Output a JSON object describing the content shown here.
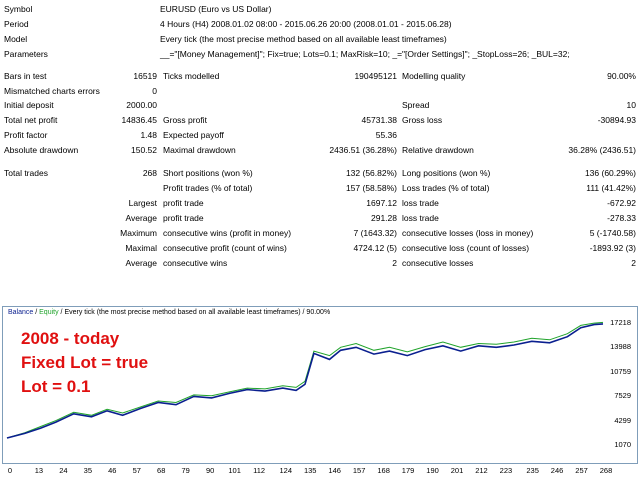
{
  "report": {
    "symbol": {
      "label": "Symbol",
      "value": "EURUSD (Euro vs US Dollar)"
    },
    "period": {
      "label": "Period",
      "value": "4 Hours (H4) 2008.01.02 08:00 - 2015.06.26 20:00 (2008.01.01 - 2015.06.28)"
    },
    "model": {
      "label": "Model",
      "value": "Every tick (the most precise method based on all available least timeframes)"
    },
    "parameters": {
      "label": "Parameters",
      "value": "__=\"[Money Management]\"; Fix=true; Lots=0.1; MaxRisk=10; _=\"[Order Settings]\"; _StopLoss=26; _BUL=32;"
    },
    "bars_in_test": {
      "label": "Bars in test",
      "value": "16519"
    },
    "ticks_modelled": {
      "label": "Ticks modelled",
      "value": "190495121"
    },
    "modelling_quality": {
      "label": "Modelling quality",
      "value": "90.00%"
    },
    "mismatched": {
      "label": "Mismatched charts errors",
      "value": "0"
    },
    "initial_deposit": {
      "label": "Initial deposit",
      "value": "2000.00"
    },
    "spread": {
      "label": "Spread",
      "value": "10"
    },
    "total_net_profit": {
      "label": "Total net profit",
      "value": "14836.45"
    },
    "gross_profit": {
      "label": "Gross profit",
      "value": "45731.38"
    },
    "gross_loss": {
      "label": "Gross loss",
      "value": "-30894.93"
    },
    "profit_factor": {
      "label": "Profit factor",
      "value": "1.48"
    },
    "expected_payoff": {
      "label": "Expected payoff",
      "value": "55.36"
    },
    "absolute_drawdown": {
      "label": "Absolute drawdown",
      "value": "150.52"
    },
    "maximal_drawdown": {
      "label": "Maximal drawdown",
      "value": "2436.51 (36.28%)"
    },
    "relative_drawdown": {
      "label": "Relative drawdown",
      "value": "36.28% (2436.51)"
    },
    "total_trades": {
      "label": "Total trades",
      "value": "268"
    },
    "short_positions": {
      "label": "Short positions (won %)",
      "value": "132 (56.82%)"
    },
    "long_positions": {
      "label": "Long positions (won %)",
      "value": "136 (60.29%)"
    },
    "profit_trades": {
      "label": "Profit trades (% of total)",
      "value": "157 (58.58%)"
    },
    "loss_trades": {
      "label": "Loss trades (% of total)",
      "value": "111 (41.42%)"
    },
    "largest": {
      "label": "Largest",
      "profit_label": "profit trade",
      "profit": "1697.12",
      "loss_label": "loss trade",
      "loss": "-672.92"
    },
    "average": {
      "label": "Average",
      "profit_label": "profit trade",
      "profit": "291.28",
      "loss_label": "loss trade",
      "loss": "-278.33"
    },
    "maximum": {
      "label": "Maximum",
      "wins_label": "consecutive wins (profit in money)",
      "wins": "7 (1643.32)",
      "losses_label": "consecutive losses (loss in money)",
      "losses": "5 (-1740.58)"
    },
    "maximal": {
      "label": "Maximal",
      "profit_label": "consecutive profit (count of wins)",
      "profit": "4724.12 (5)",
      "loss_label": "consecutive loss (count of losses)",
      "loss": "-1893.92 (3)"
    },
    "average_consec": {
      "label": "Average",
      "wins_label": "consecutive wins",
      "wins": "2",
      "losses_label": "consecutive losses",
      "losses": "2"
    }
  },
  "chart_header": {
    "balance": "Balance",
    "sep": " / ",
    "equity": "Equity",
    "rest": " / Every tick (the most precise method based on all available least timeframes) / 90.00%"
  },
  "overlay": {
    "line1": "2008 - today",
    "line2": "Fixed Lot = true",
    "line3": "Lot = 0.1"
  },
  "chart_data": {
    "type": "line",
    "y_ticks": [
      "17218",
      "13988",
      "10759",
      "7529",
      "4299",
      "1070"
    ],
    "x_ticks": [
      "0",
      "13",
      "24",
      "35",
      "46",
      "57",
      "68",
      "79",
      "90",
      "101",
      "112",
      "124",
      "135",
      "146",
      "157",
      "168",
      "179",
      "190",
      "201",
      "212",
      "223",
      "235",
      "246",
      "257",
      "268"
    ],
    "xlim": [
      0,
      268
    ],
    "ylim": [
      1070,
      17218
    ],
    "series": [
      {
        "name": "Balance",
        "color": "#0a1f8f",
        "points": [
          [
            0,
            2000
          ],
          [
            8,
            2600
          ],
          [
            15,
            3300
          ],
          [
            22,
            4100
          ],
          [
            30,
            5200
          ],
          [
            38,
            4800
          ],
          [
            45,
            5600
          ],
          [
            52,
            5000
          ],
          [
            60,
            5900
          ],
          [
            68,
            6700
          ],
          [
            76,
            6400
          ],
          [
            84,
            7500
          ],
          [
            92,
            7300
          ],
          [
            100,
            7900
          ],
          [
            108,
            8400
          ],
          [
            116,
            8200
          ],
          [
            124,
            8600
          ],
          [
            130,
            8300
          ],
          [
            134,
            9100
          ],
          [
            138,
            13200
          ],
          [
            145,
            12400
          ],
          [
            150,
            13600
          ],
          [
            157,
            14000
          ],
          [
            165,
            13100
          ],
          [
            172,
            13500
          ],
          [
            180,
            12900
          ],
          [
            188,
            13700
          ],
          [
            196,
            14200
          ],
          [
            204,
            13500
          ],
          [
            212,
            14200
          ],
          [
            220,
            14000
          ],
          [
            228,
            14300
          ],
          [
            236,
            14800
          ],
          [
            244,
            14600
          ],
          [
            252,
            15400
          ],
          [
            258,
            16600
          ],
          [
            264,
            17000
          ],
          [
            268,
            17100
          ]
        ]
      },
      {
        "name": "Equity",
        "color": "#1fa32a",
        "points": [
          [
            0,
            2000
          ],
          [
            8,
            2700
          ],
          [
            15,
            3500
          ],
          [
            22,
            4300
          ],
          [
            30,
            5400
          ],
          [
            38,
            5000
          ],
          [
            45,
            5800
          ],
          [
            52,
            5300
          ],
          [
            60,
            6100
          ],
          [
            68,
            6900
          ],
          [
            76,
            6700
          ],
          [
            84,
            7700
          ],
          [
            92,
            7600
          ],
          [
            100,
            8100
          ],
          [
            108,
            8600
          ],
          [
            116,
            8500
          ],
          [
            124,
            8900
          ],
          [
            130,
            8700
          ],
          [
            134,
            9500
          ],
          [
            138,
            13500
          ],
          [
            145,
            12900
          ],
          [
            150,
            14000
          ],
          [
            157,
            14500
          ],
          [
            165,
            13600
          ],
          [
            172,
            14000
          ],
          [
            180,
            13400
          ],
          [
            188,
            14100
          ],
          [
            196,
            14700
          ],
          [
            204,
            14000
          ],
          [
            212,
            14500
          ],
          [
            220,
            14400
          ],
          [
            228,
            14700
          ],
          [
            236,
            15200
          ],
          [
            244,
            15000
          ],
          [
            252,
            15800
          ],
          [
            258,
            16900
          ],
          [
            264,
            17200
          ],
          [
            268,
            17300
          ]
        ]
      }
    ]
  }
}
